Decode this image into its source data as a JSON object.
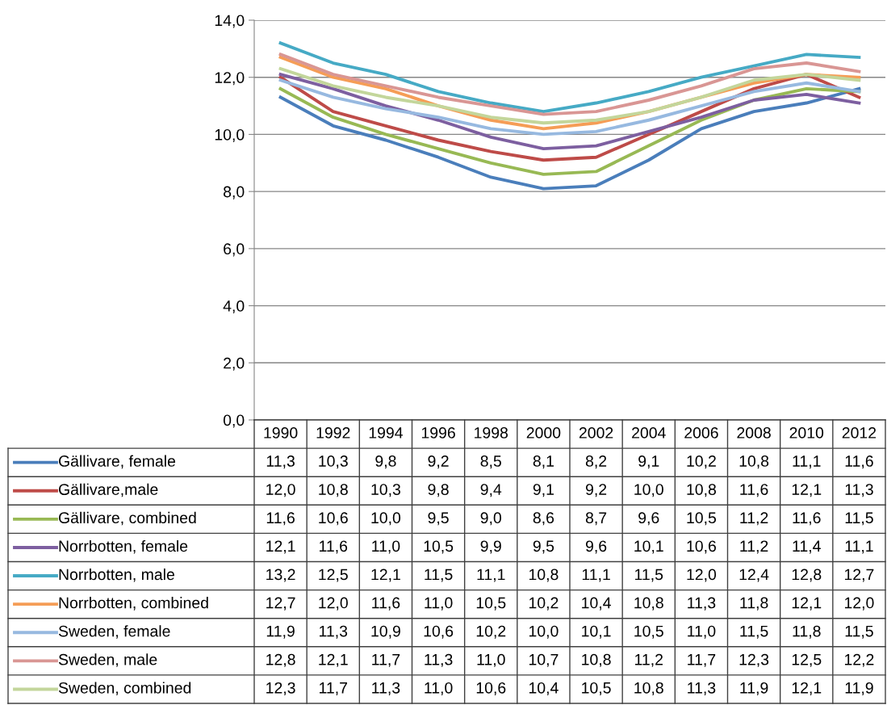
{
  "chart_data": {
    "type": "line",
    "categories": [
      "1990",
      "1992",
      "1994",
      "1996",
      "1998",
      "2000",
      "2002",
      "2004",
      "2006",
      "2008",
      "2010",
      "2012"
    ],
    "ylim": [
      0,
      14
    ],
    "yticks": [
      {
        "value": 0,
        "label": "0,0"
      },
      {
        "value": 2,
        "label": "2,0"
      },
      {
        "value": 4,
        "label": "4,0"
      },
      {
        "value": 6,
        "label": "6,0"
      },
      {
        "value": 8,
        "label": "8,0"
      },
      {
        "value": 10,
        "label": "10,0"
      },
      {
        "value": 12,
        "label": "12,0"
      },
      {
        "value": 14,
        "label": "14,0"
      }
    ],
    "grid": "y",
    "legend": "bottom",
    "marker": "none",
    "line_style": "solid",
    "series": [
      {
        "name": "Gällivare, female",
        "color": "#4a7ebb",
        "values": [
          11.3,
          10.3,
          9.8,
          9.2,
          8.5,
          8.1,
          8.2,
          9.1,
          10.2,
          10.8,
          11.1,
          11.6
        ],
        "value_labels": [
          "11,3",
          "10,3",
          "9,8",
          "9,2",
          "8,5",
          "8,1",
          "8,2",
          "9,1",
          "10,2",
          "10,8",
          "11,1",
          "11,6"
        ]
      },
      {
        "name": "Gällivare,male",
        "color": "#be4b48",
        "values": [
          12.0,
          10.8,
          10.3,
          9.8,
          9.4,
          9.1,
          9.2,
          10.0,
          10.8,
          11.6,
          12.1,
          11.3
        ],
        "value_labels": [
          "12,0",
          "10,8",
          "10,3",
          "9,8",
          "9,4",
          "9,1",
          "9,2",
          "10,0",
          "10,8",
          "11,6",
          "12,1",
          "11,3"
        ]
      },
      {
        "name": "Gällivare, combined",
        "color": "#98b954",
        "values": [
          11.6,
          10.6,
          10.0,
          9.5,
          9.0,
          8.6,
          8.7,
          9.6,
          10.5,
          11.2,
          11.6,
          11.5
        ],
        "value_labels": [
          "11,6",
          "10,6",
          "10,0",
          "9,5",
          "9,0",
          "8,6",
          "8,7",
          "9,6",
          "10,5",
          "11,2",
          "11,6",
          "11,5"
        ]
      },
      {
        "name": "Norrbotten, female",
        "color": "#7d5fa0",
        "values": [
          12.1,
          11.6,
          11.0,
          10.5,
          9.9,
          9.5,
          9.6,
          10.1,
          10.6,
          11.2,
          11.4,
          11.1
        ],
        "value_labels": [
          "12,1",
          "11,6",
          "11,0",
          "10,5",
          "9,9",
          "9,5",
          "9,6",
          "10,1",
          "10,6",
          "11,2",
          "11,4",
          "11,1"
        ]
      },
      {
        "name": "Norrbotten, male",
        "color": "#46aac5",
        "values": [
          13.2,
          12.5,
          12.1,
          11.5,
          11.1,
          10.8,
          11.1,
          11.5,
          12.0,
          12.4,
          12.8,
          12.7
        ],
        "value_labels": [
          "13,2",
          "12,5",
          "12,1",
          "11,5",
          "11,1",
          "10,8",
          "11,1",
          "11,5",
          "12,0",
          "12,4",
          "12,8",
          "12,7"
        ]
      },
      {
        "name": "Norrbotten, combined",
        "color": "#f59d56",
        "values": [
          12.7,
          12.0,
          11.6,
          11.0,
          10.5,
          10.2,
          10.4,
          10.8,
          11.3,
          11.8,
          12.1,
          12.0
        ],
        "value_labels": [
          "12,7",
          "12,0",
          "11,6",
          "11,0",
          "10,5",
          "10,2",
          "10,4",
          "10,8",
          "11,3",
          "11,8",
          "12,1",
          "12,0"
        ]
      },
      {
        "name": "Sweden, female",
        "color": "#97b9e0",
        "values": [
          11.9,
          11.3,
          10.9,
          10.6,
          10.2,
          10.0,
          10.1,
          10.5,
          11.0,
          11.5,
          11.8,
          11.5
        ],
        "value_labels": [
          "11,9",
          "11,3",
          "10,9",
          "10,6",
          "10,2",
          "10,0",
          "10,1",
          "10,5",
          "11,0",
          "11,5",
          "11,8",
          "11,5"
        ]
      },
      {
        "name": "Sweden, male",
        "color": "#d99694",
        "values": [
          12.8,
          12.1,
          11.7,
          11.3,
          11.0,
          10.7,
          10.8,
          11.2,
          11.7,
          12.3,
          12.5,
          12.2
        ],
        "value_labels": [
          "12,8",
          "12,1",
          "11,7",
          "11,3",
          "11,0",
          "10,7",
          "10,8",
          "11,2",
          "11,7",
          "12,3",
          "12,5",
          "12,2"
        ]
      },
      {
        "name": "Sweden, combined",
        "color": "#c3d69b",
        "values": [
          12.3,
          11.7,
          11.3,
          11.0,
          10.6,
          10.4,
          10.5,
          10.8,
          11.3,
          11.9,
          12.1,
          11.9
        ],
        "value_labels": [
          "12,3",
          "11,7",
          "11,3",
          "11,0",
          "10,6",
          "10,4",
          "10,5",
          "10,8",
          "11,3",
          "11,9",
          "12,1",
          "11,9"
        ]
      }
    ]
  }
}
